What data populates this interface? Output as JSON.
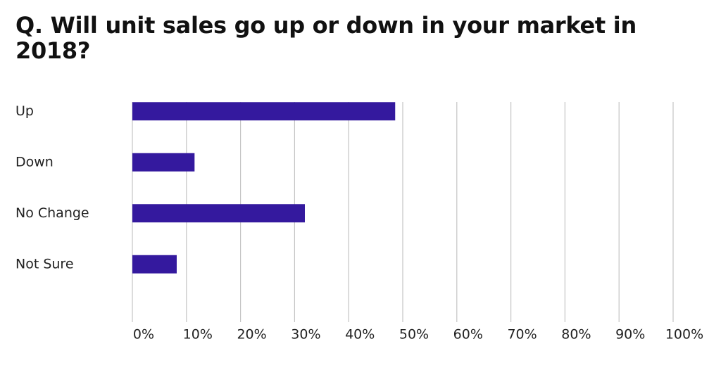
{
  "chart_data": {
    "type": "bar",
    "orientation": "horizontal",
    "title": "Q. Will unit sales go up or down in your market in 2018?",
    "categories": [
      "Up",
      "Down",
      "No Change",
      "Not Sure"
    ],
    "values": [
      48.6,
      11.5,
      31.9,
      8.2
    ],
    "color": "#34199e",
    "xlim": [
      0,
      100
    ],
    "xticks": [
      {
        "value": 0,
        "label": "0%"
      },
      {
        "value": 10,
        "label": "10%"
      },
      {
        "value": 20,
        "label": "20%"
      },
      {
        "value": 30,
        "label": "30%"
      },
      {
        "value": 40,
        "label": "40%"
      },
      {
        "value": 50,
        "label": "50%"
      },
      {
        "value": 60,
        "label": "60%"
      },
      {
        "value": 70,
        "label": "70%"
      },
      {
        "value": 80,
        "label": "80%"
      },
      {
        "value": 90,
        "label": "90%"
      },
      {
        "value": 100,
        "label": "100%"
      }
    ],
    "grid": true
  }
}
